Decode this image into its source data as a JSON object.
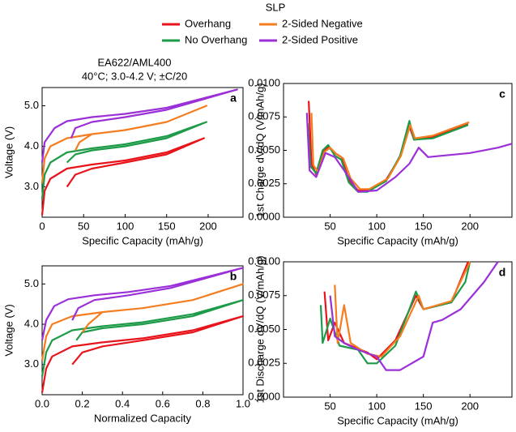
{
  "legend": {
    "title": "SLP"
  },
  "chart_data": [
    {
      "type": "line",
      "panel_label": "a",
      "annotations": [
        "EA622/AML400",
        "40°C; 3.0-4.2 V; ±C/20"
      ],
      "x_label": "Specific Capacity (mAh/g)",
      "y_label": "Voltage (V)",
      "xlim": [
        0,
        242
      ],
      "ylim": [
        2.25,
        5.45
      ],
      "xticks": [
        0,
        50,
        100,
        150,
        200
      ],
      "yticks": [
        {
          "value": 3,
          "label": "3.0"
        },
        {
          "value": 4,
          "label": "4.0"
        },
        {
          "value": 5,
          "label": "5.0"
        }
      ],
      "series": [
        {
          "name": "Overhang",
          "color": "#e8141b",
          "x": [
            0,
            3,
            10,
            30,
            60,
            100,
            150,
            195,
            150,
            100,
            60,
            40,
            30
          ],
          "values": [
            2.3,
            2.9,
            3.2,
            3.45,
            3.55,
            3.65,
            3.85,
            4.2,
            3.8,
            3.6,
            3.45,
            3.3,
            3.0
          ]
        },
        {
          "name": "No Overhang",
          "color": "#1e9b48",
          "x": [
            0,
            3,
            10,
            30,
            60,
            100,
            150,
            198,
            150,
            100,
            60,
            40,
            30
          ],
          "values": [
            2.7,
            3.3,
            3.6,
            3.85,
            3.95,
            4.05,
            4.25,
            4.6,
            4.2,
            4.0,
            3.9,
            3.8,
            3.6
          ]
        },
        {
          "name": "2-Sided Negative",
          "color": "#f47d20",
          "x": [
            0,
            3,
            10,
            30,
            60,
            100,
            150,
            198,
            150,
            100,
            60,
            45,
            40
          ],
          "values": [
            3.1,
            3.7,
            4.0,
            4.2,
            4.3,
            4.4,
            4.6,
            5.0,
            4.6,
            4.4,
            4.3,
            4.1,
            3.9
          ]
        },
        {
          "name": "2-Sided Positive",
          "color": "#9b30d8",
          "x": [
            0,
            3,
            15,
            30,
            60,
            100,
            150,
            235,
            150,
            100,
            60,
            40,
            35
          ],
          "values": [
            3.6,
            4.1,
            4.45,
            4.62,
            4.72,
            4.8,
            4.95,
            5.4,
            4.9,
            4.72,
            4.6,
            4.45,
            4.2
          ]
        }
      ]
    },
    {
      "type": "line",
      "panel_label": "c",
      "x_label": "Specific Capacity (mAh/g)",
      "y_label": "1st Charge dV/dQ (V/mAh/g)",
      "xlim": [
        0,
        245
      ],
      "ylim": [
        0,
        0.01
      ],
      "xticks": [
        50,
        100,
        150,
        200
      ],
      "yticks": [
        {
          "value": 0,
          "label": "0.0000"
        },
        {
          "value": 0.0025,
          "label": "0.0025"
        },
        {
          "value": 0.005,
          "label": "0.0050"
        },
        {
          "value": 0.0075,
          "label": "0.0075"
        },
        {
          "value": 0.01,
          "label": "0.0100"
        }
      ],
      "series": [
        {
          "name": "Overhang",
          "color": "#e8141b",
          "x": [
            27,
            30,
            35,
            42,
            48,
            55,
            62,
            70,
            80,
            90,
            110,
            125,
            135,
            140,
            160,
            198
          ],
          "values": [
            0.0087,
            0.004,
            0.0032,
            0.0048,
            0.0053,
            0.0048,
            0.0045,
            0.0028,
            0.002,
            0.002,
            0.0028,
            0.0045,
            0.0068,
            0.0058,
            0.006,
            0.007
          ]
        },
        {
          "name": "No Overhang",
          "color": "#1e9b48",
          "x": [
            26,
            29,
            35,
            42,
            48,
            55,
            62,
            70,
            80,
            90,
            110,
            125,
            135,
            140,
            160,
            198
          ],
          "values": [
            0.007,
            0.0038,
            0.0033,
            0.005,
            0.0054,
            0.0046,
            0.0043,
            0.0026,
            0.0019,
            0.0019,
            0.0027,
            0.0046,
            0.0072,
            0.0058,
            0.0059,
            0.0069
          ]
        },
        {
          "name": "2-Sided Negative",
          "color": "#f47d20",
          "x": [
            30,
            32,
            37,
            44,
            50,
            57,
            64,
            72,
            82,
            92,
            112,
            126,
            136,
            141,
            160,
            199
          ],
          "values": [
            0.0078,
            0.0039,
            0.0034,
            0.0049,
            0.0052,
            0.0047,
            0.0044,
            0.0029,
            0.0021,
            0.0021,
            0.0029,
            0.0046,
            0.0069,
            0.0059,
            0.0061,
            0.0071
          ]
        },
        {
          "name": "2-Sided Positive",
          "color": "#9b30d8",
          "x": [
            25,
            28,
            35,
            45,
            55,
            70,
            80,
            100,
            120,
            135,
            145,
            155,
            200,
            230,
            245
          ],
          "values": [
            0.0078,
            0.0035,
            0.003,
            0.0048,
            0.0045,
            0.003,
            0.0019,
            0.002,
            0.003,
            0.004,
            0.0052,
            0.0045,
            0.0048,
            0.0052,
            0.0055
          ]
        }
      ]
    },
    {
      "type": "line",
      "panel_label": "b",
      "x_label": "Normalized Capacity",
      "y_label": "Voltage (V)",
      "xlim": [
        0,
        1
      ],
      "ylim": [
        2.25,
        5.45
      ],
      "xticks": [
        {
          "value": 0,
          "label": "0.0"
        },
        {
          "value": 0.2,
          "label": "0.2"
        },
        {
          "value": 0.4,
          "label": "0.4"
        },
        {
          "value": 0.6,
          "label": "0.6"
        },
        {
          "value": 0.8,
          "label": "0.8"
        },
        {
          "value": 1,
          "label": "1.0"
        }
      ],
      "yticks": [
        {
          "value": 3,
          "label": "3.0"
        },
        {
          "value": 4,
          "label": "4.0"
        },
        {
          "value": 5,
          "label": "5.0"
        }
      ],
      "series": [
        {
          "name": "Overhang",
          "color": "#e8141b",
          "x": [
            0,
            0.02,
            0.05,
            0.15,
            0.3,
            0.5,
            0.75,
            1,
            0.75,
            0.5,
            0.3,
            0.2,
            0.15
          ],
          "values": [
            2.3,
            2.9,
            3.2,
            3.45,
            3.55,
            3.65,
            3.85,
            4.2,
            3.8,
            3.6,
            3.45,
            3.3,
            3.0
          ]
        },
        {
          "name": "No Overhang",
          "color": "#1e9b48",
          "x": [
            0,
            0.02,
            0.05,
            0.15,
            0.3,
            0.5,
            0.75,
            1,
            0.75,
            0.5,
            0.3,
            0.2,
            0.17
          ],
          "values": [
            2.7,
            3.3,
            3.6,
            3.85,
            3.95,
            4.05,
            4.25,
            4.6,
            4.2,
            4.0,
            3.9,
            3.8,
            3.6
          ]
        },
        {
          "name": "2-Sided Negative",
          "color": "#f47d20",
          "x": [
            0,
            0.02,
            0.05,
            0.15,
            0.3,
            0.5,
            0.75,
            1,
            0.75,
            0.5,
            0.3,
            0.23,
            0.2
          ],
          "values": [
            3.1,
            3.7,
            4.0,
            4.2,
            4.3,
            4.4,
            4.6,
            5.0,
            4.6,
            4.4,
            4.3,
            4.0,
            3.8
          ]
        },
        {
          "name": "2-Sided Positive",
          "color": "#9b30d8",
          "x": [
            0,
            0.02,
            0.06,
            0.13,
            0.26,
            0.43,
            0.64,
            1,
            0.64,
            0.43,
            0.26,
            0.18,
            0.15
          ],
          "values": [
            3.6,
            4.1,
            4.45,
            4.62,
            4.72,
            4.8,
            4.95,
            5.4,
            4.9,
            4.72,
            4.6,
            4.4,
            4.1
          ]
        }
      ]
    },
    {
      "type": "line",
      "panel_label": "d",
      "x_label": "Specific Capacity (mAh/g)",
      "y_label": "1st Discharge dV/dQ (V/mAh/g)",
      "xlim": [
        0,
        245
      ],
      "ylim": [
        0,
        0.01
      ],
      "xticks": [
        50,
        100,
        150,
        200
      ],
      "yticks": [
        {
          "value": 0,
          "label": "0.0000"
        },
        {
          "value": 0.0025,
          "label": "0.0025"
        },
        {
          "value": 0.005,
          "label": "0.0050"
        },
        {
          "value": 0.0075,
          "label": "0.0075"
        },
        {
          "value": 0.01,
          "label": "0.0100"
        }
      ],
      "series": [
        {
          "name": "Overhang",
          "color": "#e8141b",
          "x": [
            44,
            48,
            55,
            65,
            90,
            100,
            120,
            142,
            150,
            180,
            198
          ],
          "values": [
            0.0078,
            0.0042,
            0.0055,
            0.004,
            0.0033,
            0.0028,
            0.0042,
            0.0075,
            0.0065,
            0.007,
            0.01
          ]
        },
        {
          "name": "No Overhang",
          "color": "#1e9b48",
          "x": [
            40,
            42,
            50,
            60,
            80,
            90,
            100,
            120,
            135,
            142,
            150,
            180,
            195,
            200
          ],
          "values": [
            0.0068,
            0.004,
            0.0058,
            0.0038,
            0.0035,
            0.0025,
            0.0025,
            0.0038,
            0.0065,
            0.0078,
            0.0065,
            0.007,
            0.0085,
            0.01
          ]
        },
        {
          "name": "2-Sided Negative",
          "color": "#f47d20",
          "x": [
            55,
            58,
            65,
            72,
            90,
            105,
            125,
            145,
            150,
            180,
            200
          ],
          "values": [
            0.0083,
            0.004,
            0.0068,
            0.004,
            0.0032,
            0.003,
            0.0045,
            0.0075,
            0.0065,
            0.0071,
            0.01
          ]
        },
        {
          "name": "2-Sided Positive",
          "color": "#9b30d8",
          "x": [
            50,
            55,
            65,
            80,
            100,
            110,
            125,
            150,
            160,
            170,
            190,
            215,
            230
          ],
          "values": [
            0.0075,
            0.0045,
            0.004,
            0.0035,
            0.003,
            0.002,
            0.002,
            0.003,
            0.0055,
            0.0057,
            0.0065,
            0.0085,
            0.01
          ]
        }
      ]
    }
  ]
}
